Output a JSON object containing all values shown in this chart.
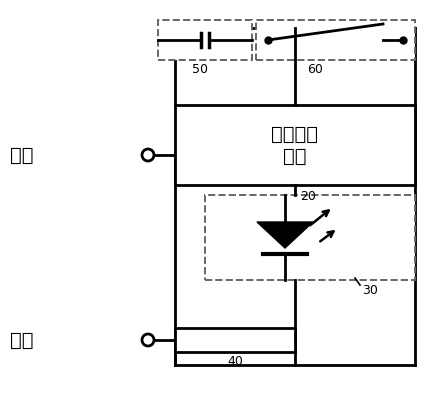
{
  "background_color": "#ffffff",
  "line_color": "#000000",
  "dashed_color": "#666666",
  "text_color": "#000000",
  "fig_width": 4.43,
  "fig_height": 4.0,
  "dpi": 100,
  "label_huoxian": "火线",
  "label_lingxian": "零线",
  "label_module": "电流继电\n模块",
  "label_50": "50",
  "label_60": "60",
  "label_20": "20",
  "label_30": "30",
  "label_40": "40"
}
